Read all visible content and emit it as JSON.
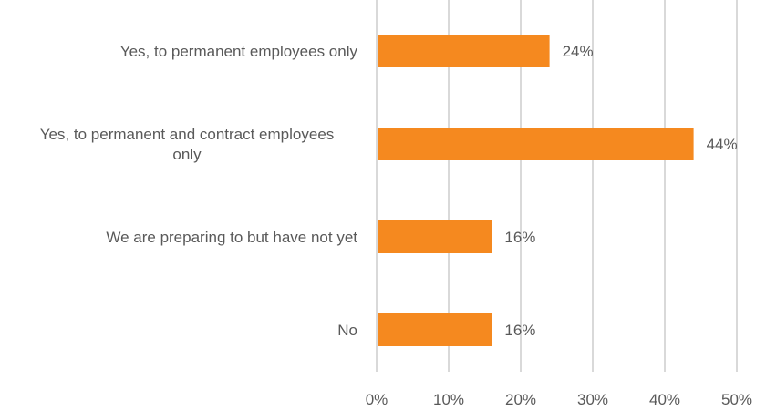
{
  "chart_data": {
    "type": "bar",
    "orientation": "horizontal",
    "categories": [
      [
        "Yes, to permanent employees only"
      ],
      [
        "Yes, to permanent and contract employees",
        "only"
      ],
      [
        "We are preparing to but have not yet"
      ],
      [
        "No"
      ]
    ],
    "values": [
      24,
      44,
      16,
      16
    ],
    "data_labels": [
      "24%",
      "44%",
      "16%",
      "16%"
    ],
    "xlim": [
      0,
      50
    ],
    "x_ticks": [
      0,
      10,
      20,
      30,
      40,
      50
    ],
    "x_tick_labels": [
      "0%",
      "10%",
      "20%",
      "30%",
      "40%",
      "50%"
    ],
    "grid": true,
    "legend": "none",
    "bar_color": "#f5891f"
  }
}
